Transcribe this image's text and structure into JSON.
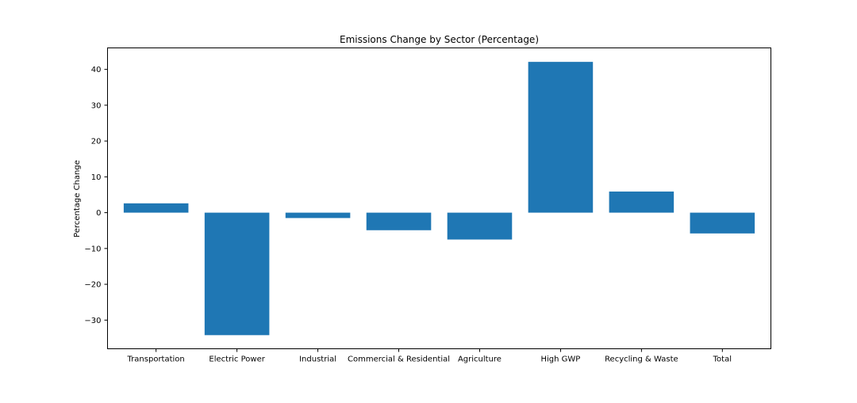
{
  "chart_data": {
    "type": "bar",
    "title": "Emissions Change by Sector (Percentage)",
    "xlabel": "",
    "ylabel": "Percentage Change",
    "categories": [
      "Transportation",
      "Electric Power",
      "Industrial",
      "Commercial & Residential",
      "Agriculture",
      "High GWP",
      "Recycling & Waste",
      "Total"
    ],
    "values": [
      2.6,
      -34.2,
      -1.5,
      -4.9,
      -7.5,
      42.1,
      5.9,
      -5.8
    ],
    "ylim": [
      -38,
      46
    ],
    "yticks": [
      -30,
      -20,
      -10,
      0,
      10,
      20,
      30,
      40
    ],
    "ytick_labels": [
      "−30",
      "−20",
      "−10",
      "0",
      "10",
      "20",
      "30",
      "40"
    ],
    "bar_color": "#1f77b4",
    "grid": false,
    "legend": "none"
  }
}
